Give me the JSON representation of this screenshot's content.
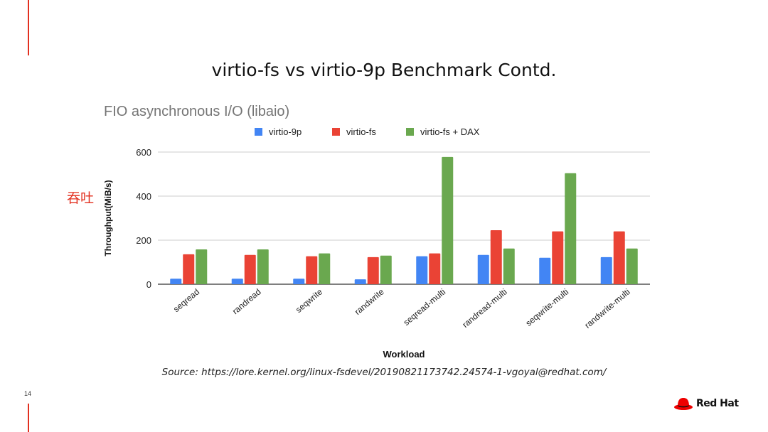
{
  "slide": {
    "title": "virtio-fs vs virtio-9p Benchmark Contd.",
    "annotation": "吞吐",
    "source": "Source: https://lore.kernel.org/linux-fsdevel/20190821173742.24574-1-vgoyal@redhat.com/",
    "page_number": "14",
    "brand": "Red Hat",
    "accent_color": "#e2301f"
  },
  "chart_data": {
    "type": "bar",
    "title": "FIO asynchronous I/O (libaio)",
    "xlabel": "Workload",
    "ylabel": "Throughput(MiB/s)",
    "ylim": [
      0,
      600
    ],
    "yticks": [
      0,
      200,
      400,
      600
    ],
    "grid": true,
    "legend_position": "top",
    "categories": [
      "seqread",
      "randread",
      "seqwrite",
      "randwrite",
      "seqread-multi",
      "randread-multi",
      "seqwrite-multi",
      "randwrite-multi"
    ],
    "series": [
      {
        "name": "virtio-9p",
        "color": "#4285f4",
        "values": [
          25,
          25,
          25,
          22,
          127,
          133,
          120,
          123
        ]
      },
      {
        "name": "virtio-fs",
        "color": "#ea4335",
        "values": [
          136,
          133,
          127,
          123,
          140,
          245,
          240,
          240
        ]
      },
      {
        "name": "virtio-fs + DAX",
        "color": "#6aa84f",
        "values": [
          158,
          158,
          140,
          130,
          578,
          162,
          504,
          162
        ]
      }
    ]
  }
}
